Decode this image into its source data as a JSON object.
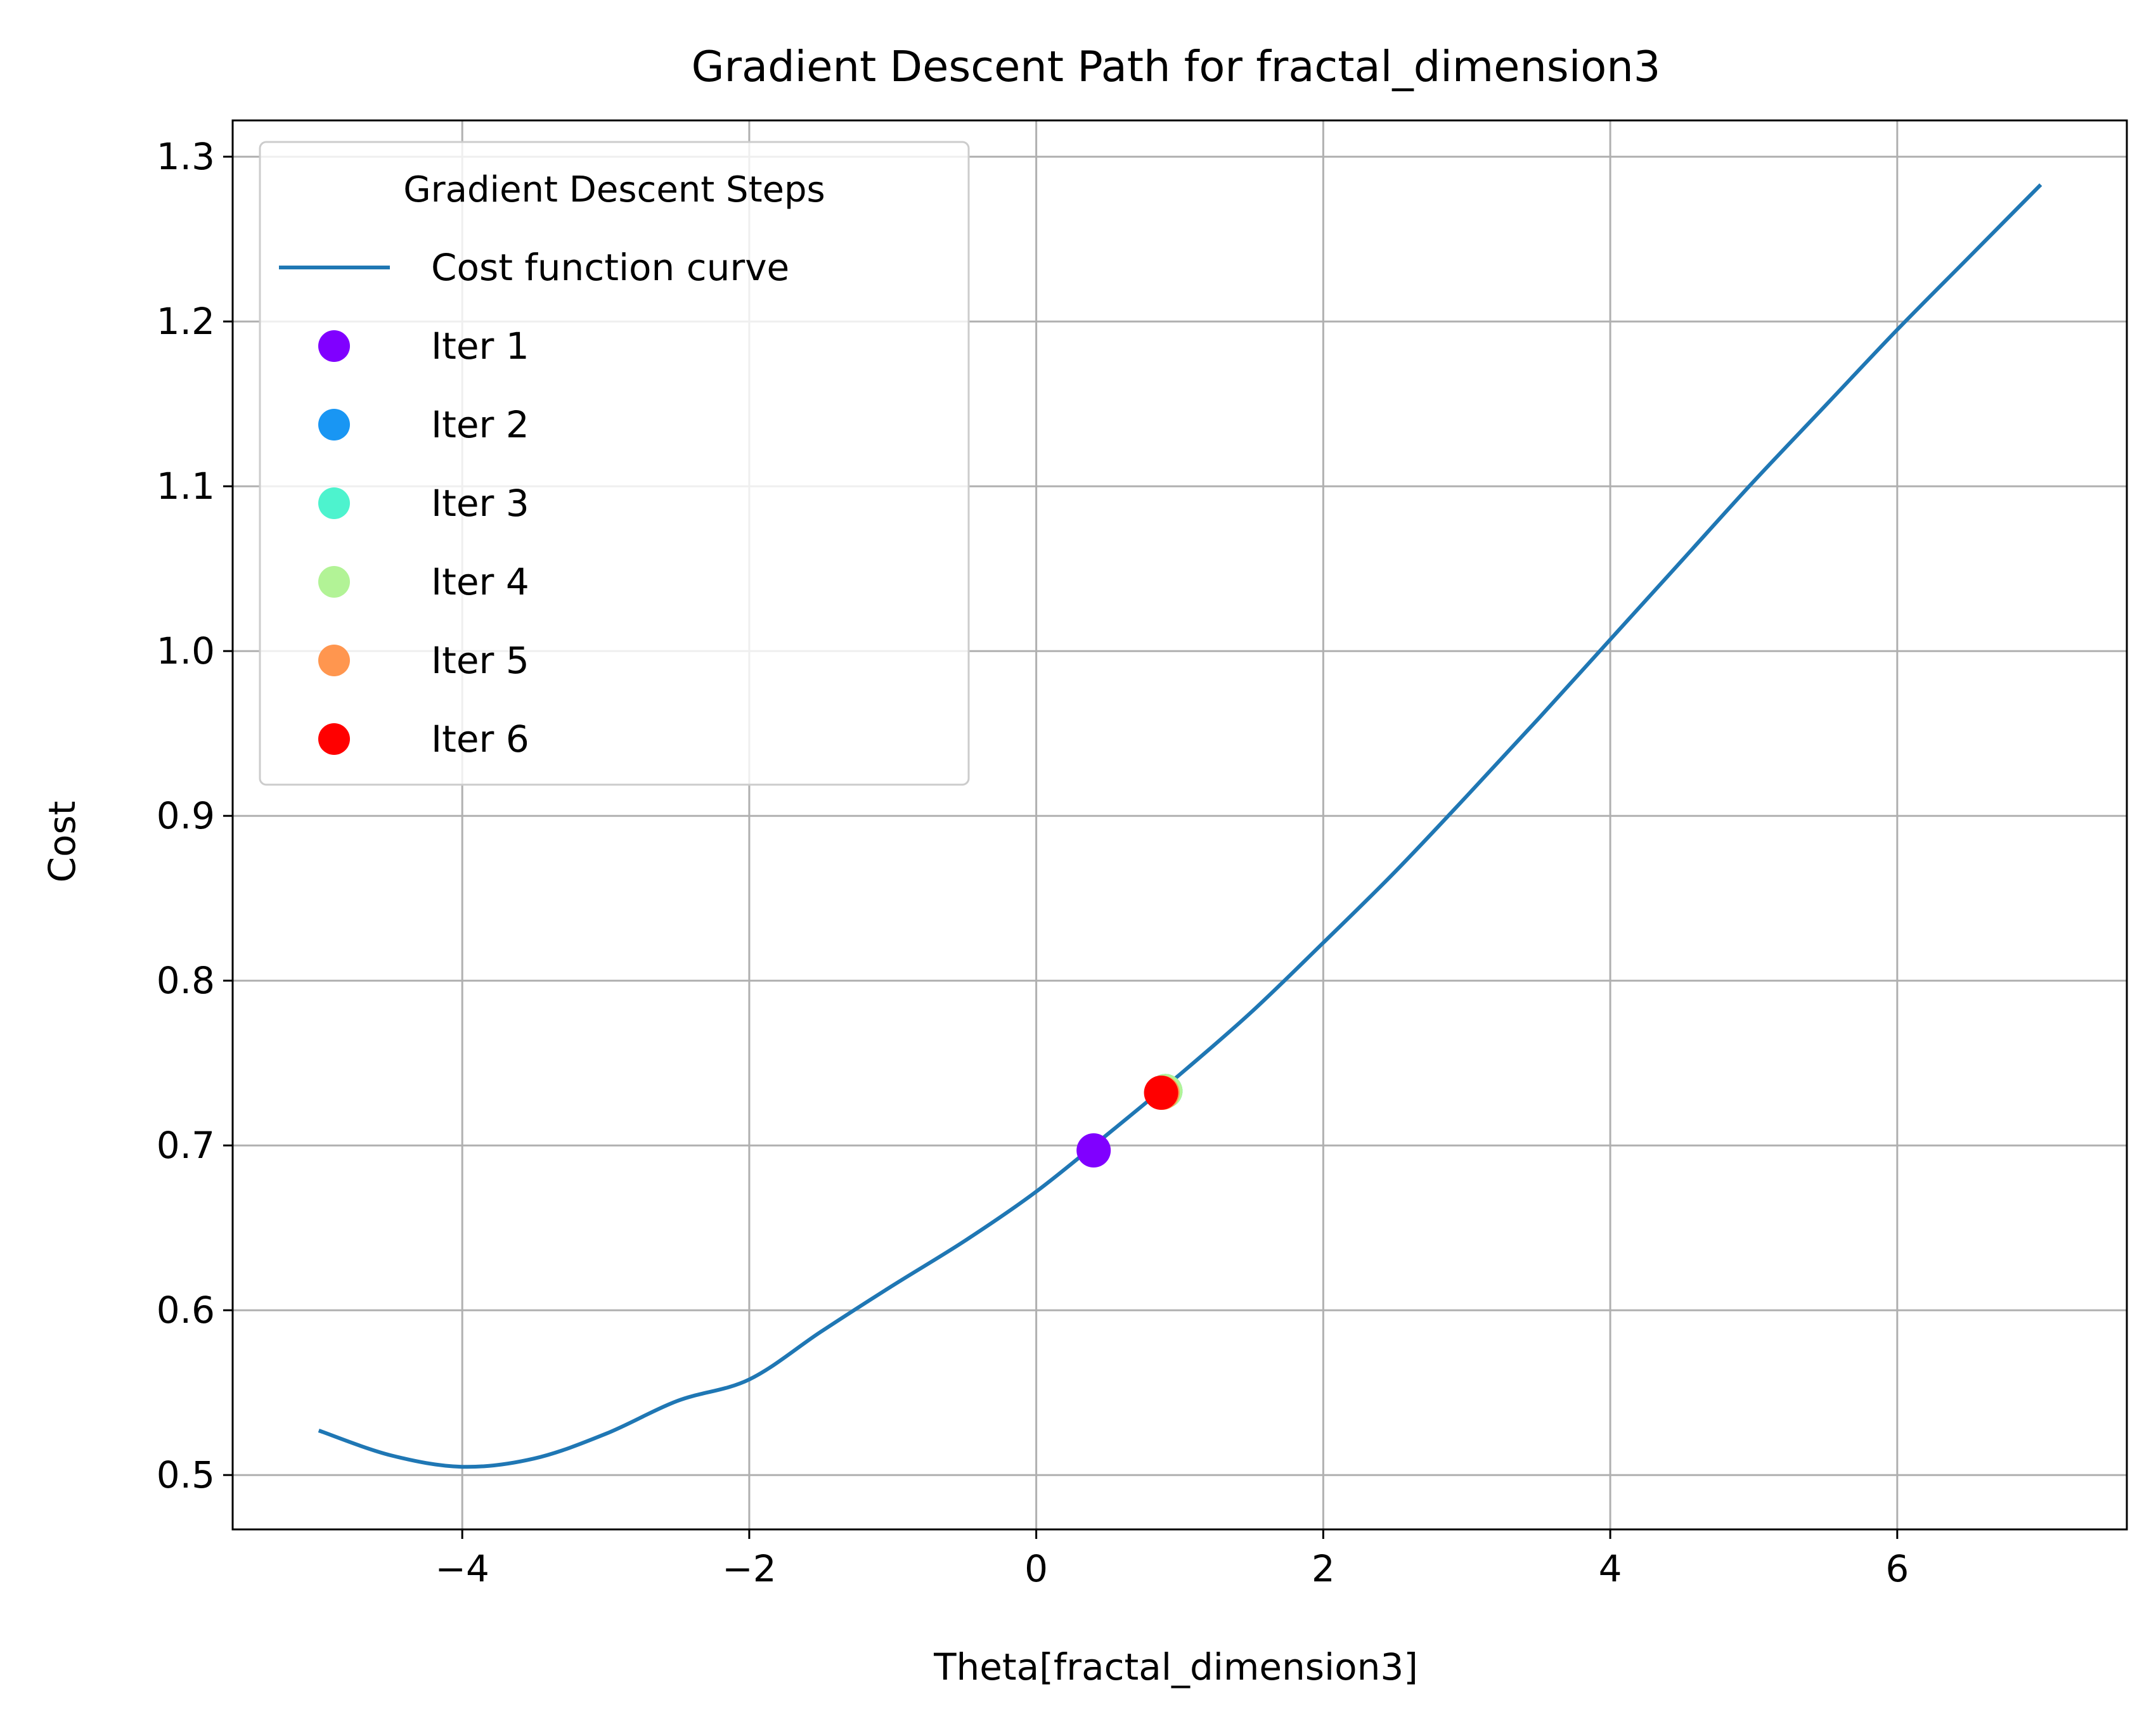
{
  "chart_data": {
    "type": "scatter",
    "title": "Gradient Descent Path for fractal_dimension3",
    "xlabel": "Theta[fractal_dimension3]",
    "ylabel": "Cost",
    "xlim": [
      -5.6,
      7.6
    ],
    "ylim": [
      0.467,
      1.322
    ],
    "grid": true,
    "x_ticks": [
      -4,
      -2,
      0,
      2,
      4,
      6
    ],
    "x_tick_labels": [
      "−4",
      "−2",
      "0",
      "2",
      "4",
      "6"
    ],
    "y_ticks": [
      0.5,
      0.6,
      0.7,
      0.8,
      0.9,
      1.0,
      1.1,
      1.2,
      1.3
    ],
    "y_tick_labels": [
      "0.5",
      "0.6",
      "0.7",
      "0.8",
      "0.9",
      "1.0",
      "1.1",
      "1.2",
      "1.3"
    ],
    "legend": {
      "title": "Gradient Descent Steps",
      "position": "upper-left"
    },
    "curve": {
      "name": "Cost function curve",
      "color": "#1f77b4",
      "x": [
        -5.0,
        -4.5,
        -4.0,
        -3.5,
        -3.0,
        -2.5,
        -2.0,
        -1.5,
        -1.0,
        -0.5,
        0.0,
        0.5,
        1.0,
        1.5,
        2.0,
        2.5,
        3.0,
        3.5,
        4.0,
        4.5,
        5.0,
        5.5,
        6.0,
        6.5,
        7.0
      ],
      "y": [
        0.527,
        0.512,
        0.505,
        0.51,
        0.525,
        0.545,
        0.558,
        0.587,
        0.615,
        0.642,
        0.672,
        0.707,
        0.743,
        0.781,
        0.823,
        0.866,
        0.912,
        0.959,
        1.007,
        1.055,
        1.103,
        1.149,
        1.195,
        1.239,
        1.283
      ]
    },
    "series": [
      {
        "name": "Iter 1",
        "color": "#8000ff",
        "x": 0.4,
        "y": 0.697
      },
      {
        "name": "Iter 2",
        "color": "#1996f3",
        "x": 0.9,
        "y": 0.733
      },
      {
        "name": "Iter 3",
        "color": "#4df3ce",
        "x": 0.9,
        "y": 0.733
      },
      {
        "name": "Iter 4",
        "color": "#b2f396",
        "x": 0.9,
        "y": 0.733
      },
      {
        "name": "Iter 5",
        "color": "#ff964f",
        "x": 0.88,
        "y": 0.732
      },
      {
        "name": "Iter 6",
        "color": "#ff0000",
        "x": 0.87,
        "y": 0.732
      }
    ]
  }
}
